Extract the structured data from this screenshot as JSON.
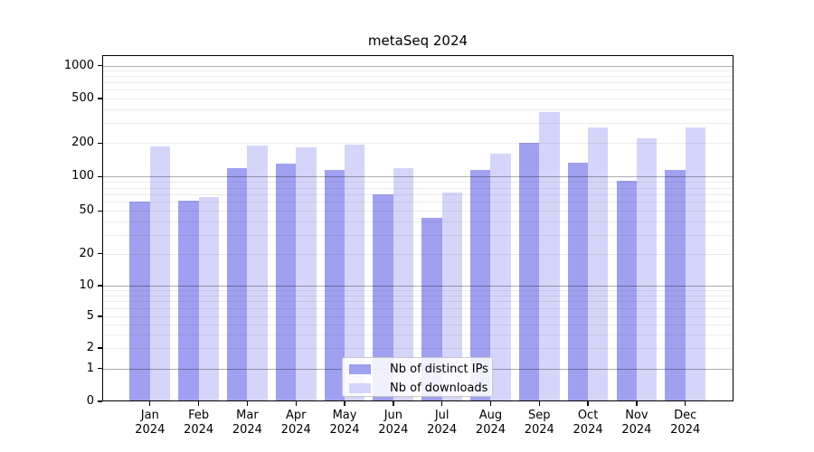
{
  "chart_data": {
    "type": "bar",
    "title": "metaSeq 2024",
    "categories": [
      "Jan",
      "Feb",
      "Mar",
      "Apr",
      "May",
      "Jun",
      "Jul",
      "Aug",
      "Sep",
      "Oct",
      "Nov",
      "Dec"
    ],
    "year": "2024",
    "series": [
      {
        "name": "Nb of distinct IPs",
        "color": "#a0a0f0",
        "values": [
          60,
          62,
          118,
          131,
          115,
          70,
          43,
          115,
          202,
          133,
          91,
          115
        ]
      },
      {
        "name": "Nb of downloads",
        "color": "#d5d5fa",
        "values": [
          188,
          66,
          190,
          182,
          194,
          119,
          73,
          161,
          375,
          276,
          220,
          276
        ]
      }
    ],
    "y_ticks": [
      0,
      1,
      2,
      5,
      10,
      20,
      50,
      100,
      200,
      500,
      1000
    ],
    "ylim": [
      0,
      1150
    ],
    "xlabel": "",
    "ylabel": "",
    "yscale": "log-like (labeled 1-2-5 steps, compressed 0-1 baseline segment)",
    "grid": {
      "horizontal_major": true,
      "horizontal_minor": true,
      "vertical": false
    },
    "legend_position": "inside bottom-center"
  }
}
